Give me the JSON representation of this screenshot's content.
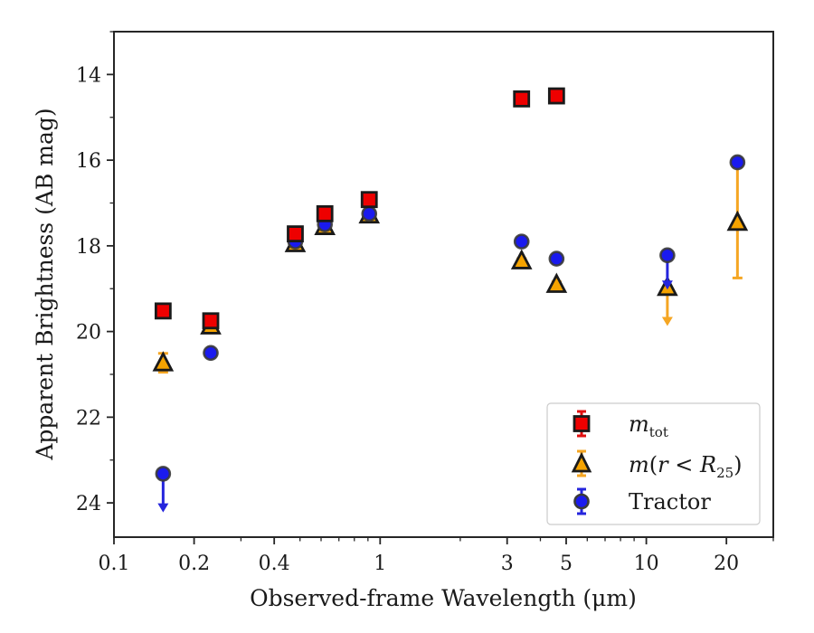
{
  "chart_data": {
    "type": "scatter",
    "xlabel": "Observed-frame Wavelength (μm)",
    "ylabel": "Apparent Brightness (AB mag)",
    "x_scale": "log",
    "xlim": [
      0.1,
      30
    ],
    "ylim": [
      24.8,
      13.0
    ],
    "y_inverted": true,
    "grid": false,
    "legend_position": "bottom-right",
    "x_ticks": [
      {
        "value": 0.1,
        "label": "0.1"
      },
      {
        "value": 0.2,
        "label": "0.2"
      },
      {
        "value": 0.4,
        "label": "0.4"
      },
      {
        "value": 1,
        "label": "1"
      },
      {
        "value": 3,
        "label": "3"
      },
      {
        "value": 5,
        "label": "5"
      },
      {
        "value": 10,
        "label": "10"
      },
      {
        "value": 20,
        "label": "20"
      }
    ],
    "x_minor_ticks": [
      0.3,
      0.5,
      0.6,
      0.7,
      0.8,
      0.9,
      2,
      4,
      6,
      7,
      8,
      9,
      30
    ],
    "y_ticks": [
      {
        "value": 14,
        "label": "14"
      },
      {
        "value": 16,
        "label": "16"
      },
      {
        "value": 18,
        "label": "18"
      },
      {
        "value": 20,
        "label": "20"
      },
      {
        "value": 22,
        "label": "22"
      },
      {
        "value": 24,
        "label": "24"
      }
    ],
    "y_minor_ticks": [
      13,
      15,
      17,
      19,
      21,
      23
    ],
    "series": [
      {
        "name_main": "m",
        "name_sub": "tot",
        "marker": "square",
        "fill": "#ee0000",
        "edge": "#1a1a1a",
        "errcolor": "#e01010",
        "points": [
          {
            "x": 0.153,
            "y": 19.52,
            "err": 0.05
          },
          {
            "x": 0.231,
            "y": 19.75,
            "err": 0.06
          },
          {
            "x": 0.48,
            "y": 17.72,
            "err": 0.04
          },
          {
            "x": 0.62,
            "y": 17.25,
            "err": 0.04
          },
          {
            "x": 0.91,
            "y": 16.92,
            "err": 0.04
          },
          {
            "x": 3.4,
            "y": 14.57,
            "err": 0.03
          },
          {
            "x": 4.6,
            "y": 14.5,
            "err": 0.03
          }
        ]
      },
      {
        "name_main": "m",
        "name_sub": "25",
        "marker": "triangle",
        "fill": "#f5a300",
        "edge": "#1a1a1a",
        "errcolor": "#f5a623",
        "points": [
          {
            "x": 0.153,
            "y": 20.73,
            "err": 0.22
          },
          {
            "x": 0.231,
            "y": 19.87,
            "err": 0.08
          },
          {
            "x": 0.48,
            "y": 17.95,
            "err": 0.03
          },
          {
            "x": 0.62,
            "y": 17.55,
            "err": 0.03
          },
          {
            "x": 0.91,
            "y": 17.28,
            "err": 0.03
          },
          {
            "x": 3.4,
            "y": 18.35,
            "err": 0.05
          },
          {
            "x": 4.6,
            "y": 18.9,
            "err": 0.06
          },
          {
            "x": 12.0,
            "y": 18.97,
            "upper_limit_to": 19.85
          },
          {
            "x": 22.0,
            "y": 17.45,
            "err_low": 1.3,
            "err_high": 1.3
          }
        ]
      },
      {
        "name": "Tractor",
        "marker": "circle",
        "fill": "#1a1aee",
        "edge": "#3a3a3a",
        "errcolor": "#2525dd",
        "points": [
          {
            "x": 0.153,
            "y": 23.32,
            "upper_limit_to": 24.2
          },
          {
            "x": 0.231,
            "y": 20.5,
            "err": 0.06
          },
          {
            "x": 0.48,
            "y": 17.9,
            "err": 0.05
          },
          {
            "x": 0.62,
            "y": 17.5,
            "err": 0.05
          },
          {
            "x": 0.91,
            "y": 17.25,
            "err": 0.05
          },
          {
            "x": 3.4,
            "y": 17.9,
            "err": 0.05
          },
          {
            "x": 4.6,
            "y": 18.3,
            "err": 0.05
          },
          {
            "x": 12.0,
            "y": 18.22,
            "upper_limit_to": 19.0
          },
          {
            "x": 22.0,
            "y": 16.05,
            "err": 0.08
          }
        ]
      }
    ]
  }
}
